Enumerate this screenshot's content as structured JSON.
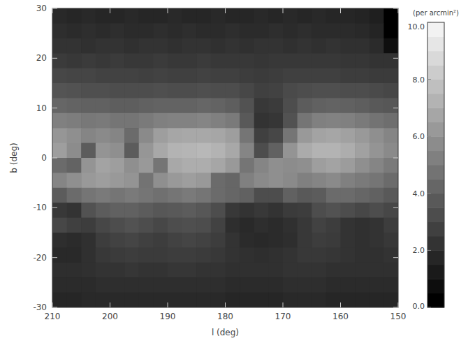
{
  "chart_data": {
    "type": "heatmap",
    "xlabel": "l (deg)",
    "ylabel": "b (deg)",
    "xlim": [
      210,
      150
    ],
    "ylim": [
      -30,
      30
    ],
    "xticks": [
      210,
      200,
      190,
      180,
      170,
      160,
      150
    ],
    "yticks": [
      -30,
      -20,
      -10,
      0,
      10,
      20,
      30
    ],
    "cells": [
      [
        1.6,
        1.5,
        1.6,
        1.5,
        1.5,
        1.6,
        1.5,
        1.5,
        1.6,
        1.5,
        1.5,
        1.6,
        1.5,
        1.5,
        1.6,
        1.5,
        1.6,
        1.5,
        1.6,
        1.5,
        1.5,
        1.4,
        1.2,
        0
      ],
      [
        1.8,
        1.7,
        1.8,
        1.7,
        1.8,
        1.7,
        1.7,
        1.8,
        1.7,
        1.8,
        1.7,
        1.7,
        1.8,
        1.7,
        1.7,
        1.8,
        1.7,
        1.8,
        1.7,
        1.7,
        1.7,
        1.6,
        1.4,
        0
      ],
      [
        2.0,
        2.0,
        1.9,
        2.0,
        2.0,
        1.9,
        2.0,
        2.0,
        1.9,
        2.0,
        2.0,
        1.9,
        2.0,
        1.9,
        2.0,
        2.0,
        1.9,
        2.0,
        1.9,
        2.0,
        1.9,
        1.9,
        1.7,
        0.6
      ],
      [
        2.3,
        2.2,
        2.3,
        2.2,
        2.3,
        2.2,
        2.2,
        2.3,
        2.2,
        2.2,
        2.3,
        2.2,
        2.2,
        2.2,
        2.1,
        2.2,
        2.2,
        2.2,
        2.2,
        2.2,
        2.1,
        2.1,
        2.0,
        2.0
      ],
      [
        2.8,
        2.7,
        2.7,
        2.6,
        2.6,
        2.6,
        2.5,
        2.6,
        2.5,
        2.5,
        2.6,
        2.5,
        2.5,
        2.4,
        2.3,
        2.4,
        2.5,
        2.5,
        2.5,
        2.5,
        2.4,
        2.4,
        2.3,
        2.3
      ],
      [
        3.3,
        3.2,
        3.1,
        3.1,
        3.0,
        3.0,
        3.0,
        3.1,
        3.0,
        3.0,
        3.1,
        3.0,
        3.0,
        2.8,
        2.5,
        2.6,
        2.9,
        3.0,
        3.1,
        3.1,
        3.0,
        3.0,
        2.9,
        2.8
      ],
      [
        4.0,
        3.9,
        3.8,
        3.8,
        3.7,
        3.7,
        3.8,
        3.9,
        3.9,
        3.9,
        4.0,
        3.9,
        3.7,
        3.2,
        2.2,
        2.3,
        3.0,
        3.6,
        3.8,
        3.9,
        3.8,
        3.7,
        3.5,
        3.4
      ],
      [
        5.0,
        4.9,
        4.7,
        4.8,
        4.6,
        4.6,
        4.8,
        5.0,
        5.1,
        5.1,
        5.2,
        5.0,
        4.8,
        3.5,
        2.0,
        2.1,
        3.2,
        4.6,
        5.0,
        5.1,
        5.0,
        4.8,
        4.5,
        4.3
      ],
      [
        5.9,
        5.6,
        5.2,
        5.4,
        5.2,
        4.2,
        5.4,
        6.2,
        6.5,
        6.6,
        6.6,
        6.5,
        6.2,
        4.6,
        2.5,
        2.8,
        4.6,
        6.0,
        6.4,
        6.5,
        6.3,
        6.0,
        5.6,
        5.2
      ],
      [
        6.2,
        5.5,
        3.6,
        5.8,
        5.6,
        3.6,
        5.9,
        6.6,
        7.0,
        7.1,
        7.2,
        7.0,
        6.6,
        5.2,
        3.0,
        3.8,
        5.8,
        6.7,
        7.0,
        7.0,
        6.8,
        6.3,
        5.8,
        5.4
      ],
      [
        4.2,
        3.9,
        5.8,
        6.4,
        6.2,
        5.6,
        6.0,
        4.6,
        6.6,
        6.8,
        6.8,
        6.5,
        6.0,
        4.6,
        5.2,
        5.6,
        5.5,
        5.6,
        6.2,
        6.4,
        6.1,
        5.6,
        5.2,
        4.8
      ],
      [
        5.2,
        5.6,
        6.0,
        6.2,
        6.0,
        5.8,
        4.5,
        5.6,
        6.0,
        6.2,
        6.0,
        4.2,
        4.0,
        5.0,
        5.4,
        5.6,
        5.4,
        5.0,
        5.2,
        5.4,
        5.0,
        4.8,
        4.6,
        4.2
      ],
      [
        3.6,
        4.2,
        4.6,
        4.8,
        4.6,
        4.8,
        4.6,
        4.4,
        4.6,
        4.8,
        4.6,
        4.2,
        4.0,
        3.8,
        3.0,
        3.0,
        3.8,
        3.5,
        3.6,
        4.2,
        4.2,
        4.0,
        3.8,
        3.5
      ],
      [
        2.2,
        2.0,
        3.2,
        3.6,
        3.8,
        3.8,
        3.6,
        3.4,
        3.5,
        3.6,
        3.4,
        3.0,
        2.2,
        2.0,
        2.2,
        2.0,
        2.3,
        2.4,
        3.0,
        3.2,
        3.0,
        2.8,
        3.0,
        2.8
      ],
      [
        2.8,
        2.5,
        2.4,
        2.8,
        3.0,
        3.2,
        3.0,
        2.8,
        3.0,
        3.1,
        3.0,
        2.6,
        1.8,
        1.6,
        1.8,
        1.7,
        1.9,
        2.2,
        2.6,
        2.4,
        2.0,
        1.9,
        2.0,
        2.4
      ],
      [
        1.8,
        1.7,
        1.9,
        2.4,
        2.6,
        2.7,
        2.5,
        2.4,
        2.6,
        2.7,
        2.6,
        2.4,
        2.0,
        1.7,
        1.6,
        1.7,
        1.8,
        2.2,
        2.4,
        2.3,
        2.0,
        1.9,
        2.0,
        2.2
      ],
      [
        1.6,
        1.6,
        1.9,
        2.2,
        2.3,
        2.4,
        2.3,
        2.3,
        2.4,
        2.4,
        2.3,
        2.2,
        2.0,
        1.9,
        1.8,
        1.9,
        2.0,
        2.2,
        2.2,
        2.1,
        2.0,
        1.9,
        1.9,
        2.0
      ],
      [
        1.8,
        1.8,
        1.9,
        2.0,
        2.0,
        2.1,
        2.0,
        2.0,
        2.1,
        2.1,
        2.0,
        2.0,
        1.9,
        1.9,
        1.9,
        1.9,
        2.0,
        2.0,
        2.0,
        1.9,
        1.9,
        1.9,
        1.9,
        1.9
      ],
      [
        1.7,
        1.7,
        1.7,
        1.8,
        1.8,
        1.8,
        1.8,
        1.8,
        1.8,
        1.8,
        1.8,
        1.8,
        1.7,
        1.7,
        1.7,
        1.7,
        1.8,
        1.8,
        1.8,
        1.7,
        1.7,
        1.7,
        1.7,
        1.7
      ],
      [
        1.5,
        1.5,
        1.6,
        1.6,
        1.6,
        1.6,
        1.6,
        1.6,
        1.6,
        1.6,
        1.6,
        1.6,
        1.5,
        1.5,
        1.5,
        1.5,
        1.6,
        1.6,
        1.6,
        1.5,
        1.5,
        1.5,
        1.5,
        1.5
      ]
    ],
    "colorbar_label": "(per arcmin²)",
    "colorbar_range": [
      0,
      10
    ],
    "colorbar_ticks": [
      {
        "value": 0,
        "label": "0.0"
      },
      {
        "value": 2,
        "label": "2.0"
      },
      {
        "value": 4,
        "label": "4.0"
      },
      {
        "value": 6,
        "label": "6.0"
      },
      {
        "value": 8,
        "label": "8.0"
      },
      {
        "value": 10,
        "label": "10.0"
      }
    ]
  }
}
